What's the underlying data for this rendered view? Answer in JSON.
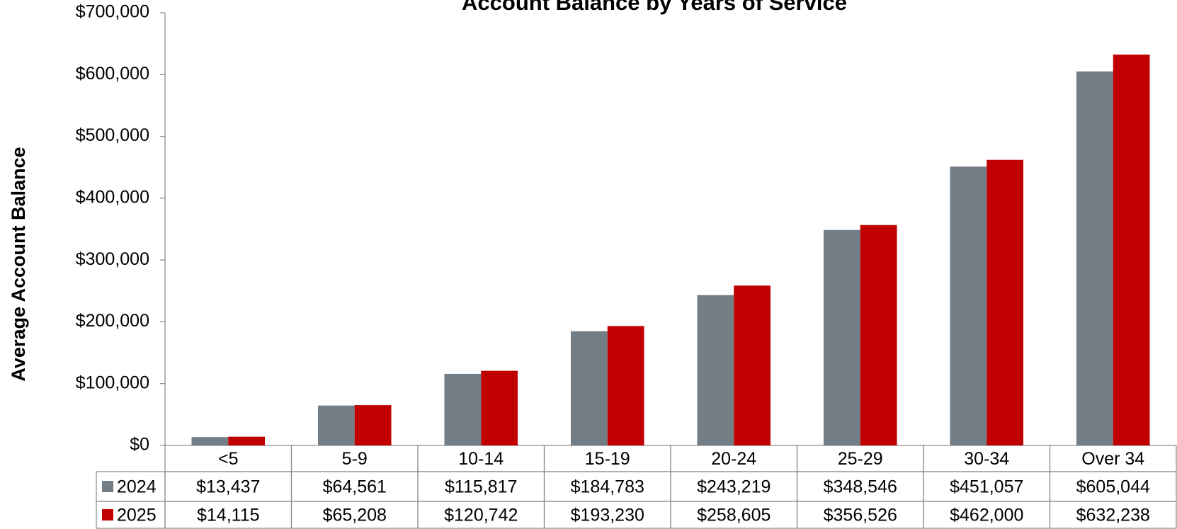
{
  "chart_data": {
    "type": "bar",
    "title": "Account Balance by Years of Service",
    "y_label": "Average Account Balance",
    "categories": [
      "<5",
      "5-9",
      "10-14",
      "15-19",
      "20-24",
      "25-29",
      "30-34",
      "Over 34"
    ],
    "series": [
      {
        "name": "2024",
        "color": "#737d86",
        "values": [
          13437,
          64561,
          115817,
          184783,
          243219,
          348546,
          451057,
          605044
        ],
        "value_labels": [
          "$13,437",
          "$64,561",
          "$115,817",
          "$184,783",
          "$243,219",
          "$348,546",
          "$451,057",
          "$605,044"
        ]
      },
      {
        "name": "2025",
        "color": "#c00000",
        "values": [
          14115,
          65208,
          120742,
          193230,
          258605,
          356526,
          462000,
          632238
        ],
        "value_labels": [
          "$14,115",
          "$65,208",
          "$120,742",
          "$193,230",
          "$258,605",
          "$356,526",
          "$462,000",
          "$632,238"
        ]
      }
    ],
    "ylim": [
      0,
      700000
    ],
    "yticks": [
      {
        "value": 0,
        "label": "$0"
      },
      {
        "value": 100000,
        "label": "$100,000"
      },
      {
        "value": 200000,
        "label": "$200,000"
      },
      {
        "value": 300000,
        "label": "$300,000"
      },
      {
        "value": 400000,
        "label": "$400,000"
      },
      {
        "value": 500000,
        "label": "$500,000"
      },
      {
        "value": 600000,
        "label": "$600,000"
      },
      {
        "value": 700000,
        "label": "$700,000"
      }
    ],
    "grid": false
  }
}
